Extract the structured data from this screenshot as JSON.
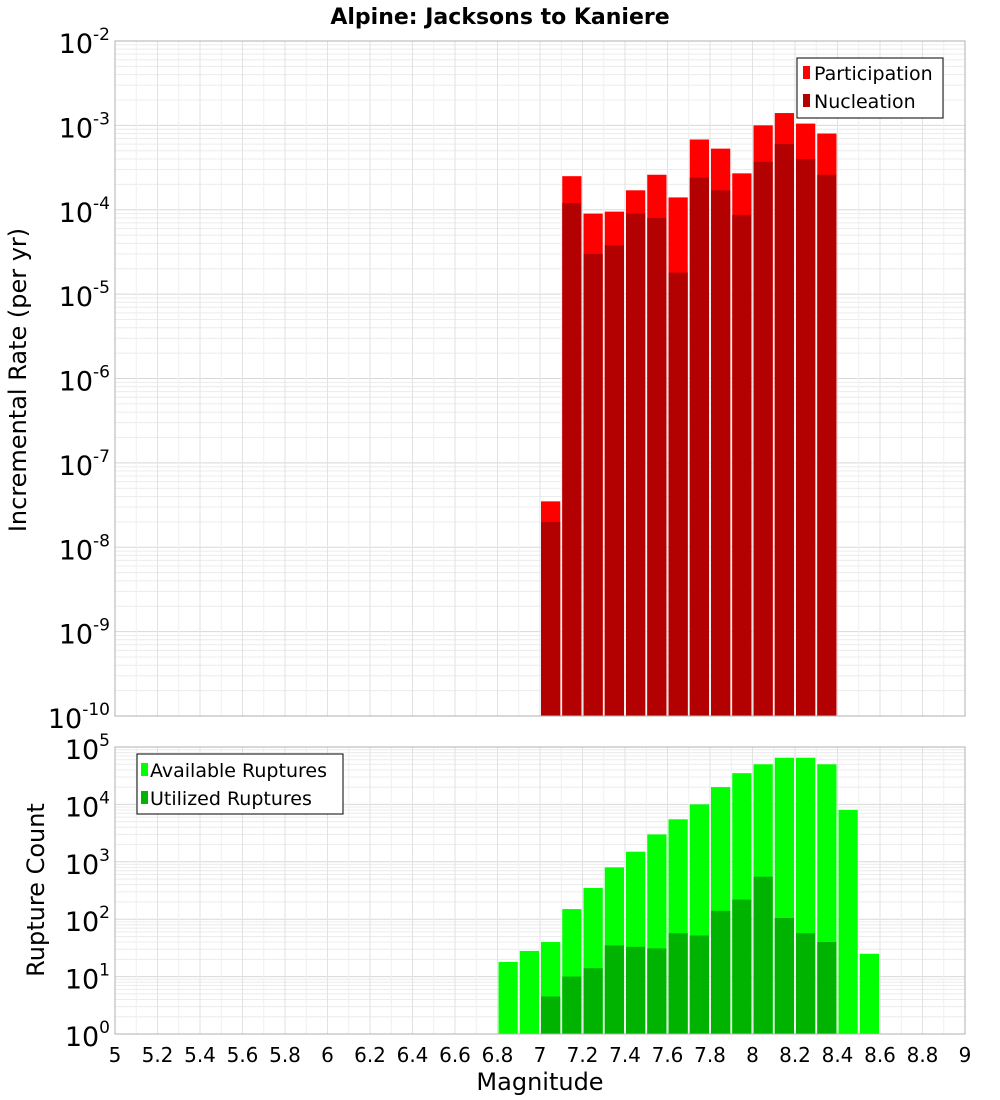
{
  "chart_data": [
    {
      "type": "bar",
      "title": "Alpine: Jacksons to Kaniere",
      "xlabel": "Magnitude",
      "ylabel": "Incremental Rate (per yr)",
      "y_scale": "log",
      "ylim_exponents": [
        -10,
        -2
      ],
      "xlim": [
        5,
        9
      ],
      "grid": true,
      "legend_position": "top-right",
      "categories": [
        7.05,
        7.15,
        7.25,
        7.35,
        7.45,
        7.55,
        7.65,
        7.75,
        7.85,
        7.95,
        8.05,
        8.15,
        8.25,
        8.35
      ],
      "series": [
        {
          "name": "Participation",
          "color": "#ff0000",
          "values": [
            3.5e-08,
            0.00025,
            9e-05,
            9.5e-05,
            0.00017,
            0.00026,
            0.00014,
            0.00068,
            0.00053,
            0.00027,
            0.001,
            0.0014,
            0.00105,
            0.0008
          ]
        },
        {
          "name": "Nucleation",
          "color": "#b30000",
          "values": [
            2e-08,
            0.00012,
            3e-05,
            3.8e-05,
            9e-05,
            8e-05,
            1.8e-05,
            0.00024,
            0.00017,
            8.7e-05,
            0.00037,
            0.0006,
            0.0004,
            0.00026
          ]
        }
      ]
    },
    {
      "type": "bar",
      "xlabel": "Magnitude",
      "ylabel": "Rupture Count",
      "y_scale": "log",
      "ylim_exponents": [
        0,
        5
      ],
      "xlim": [
        5,
        9
      ],
      "grid": true,
      "legend_position": "top-left",
      "x_tick_labels": [
        "5",
        "5.2",
        "5.4",
        "5.6",
        "5.8",
        "6",
        "6.2",
        "6.4",
        "6.6",
        "6.8",
        "7",
        "7.2",
        "7.4",
        "7.6",
        "7.8",
        "8",
        "8.2",
        "8.4",
        "8.6",
        "8.8",
        "9"
      ],
      "series": [
        {
          "name": "Available Ruptures",
          "color": "#00ff00",
          "x": [
            6.85,
            6.95,
            7.05,
            7.15,
            7.25,
            7.35,
            7.45,
            7.55,
            7.65,
            7.75,
            7.85,
            7.95,
            8.05,
            8.15,
            8.25,
            8.35,
            8.45,
            8.55
          ],
          "values": [
            18,
            28,
            40,
            150,
            350,
            800,
            1500,
            3000,
            5500,
            10000,
            20000,
            35000,
            50000,
            65000,
            65000,
            50000,
            8000,
            25
          ]
        },
        {
          "name": "Utilized Ruptures",
          "color": "#00b300",
          "x": [
            7.05,
            7.15,
            7.25,
            7.35,
            7.45,
            7.55,
            7.65,
            7.75,
            7.85,
            7.95,
            8.05,
            8.15,
            8.25,
            8.35
          ],
          "values": [
            4.5,
            10,
            14,
            35,
            33,
            31,
            57,
            52,
            140,
            220,
            550,
            105,
            57,
            40
          ]
        }
      ]
    }
  ]
}
